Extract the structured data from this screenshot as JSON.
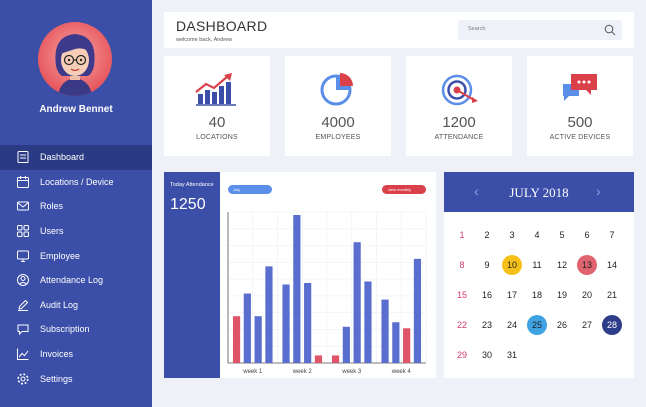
{
  "user": {
    "name": "Andrew Bennet"
  },
  "nav": [
    {
      "label": "Dashboard",
      "icon": "dashboard-icon",
      "active": true
    },
    {
      "label": "Locations / Device",
      "icon": "calendar-icon"
    },
    {
      "label": "Roles",
      "icon": "mail-icon"
    },
    {
      "label": "Users",
      "icon": "grid-icon"
    },
    {
      "label": "Employee",
      "icon": "monitor-icon"
    },
    {
      "label": "Attendance Log",
      "icon": "user-icon"
    },
    {
      "label": "Audit Log",
      "icon": "edit-icon"
    },
    {
      "label": "Subscription",
      "icon": "chat-icon"
    },
    {
      "label": "Invoices",
      "icon": "trend-icon"
    },
    {
      "label": "Settings",
      "icon": "gear-icon"
    }
  ],
  "header": {
    "title": "DASHBOARD",
    "subtitle": "welcome back, Andrew",
    "search_placeholder": "Search"
  },
  "stats": [
    {
      "value": "40",
      "label": "LOCATIONS",
      "icon": "bar-chart-icon"
    },
    {
      "value": "4000",
      "label": "EMPLOYEES",
      "icon": "pie-chart-icon"
    },
    {
      "value": "1200",
      "label": "ATTENDANCE",
      "icon": "target-icon"
    },
    {
      "value": "500",
      "label": "ACTIVE DEVICES",
      "icon": "chat-bubbles-icon"
    }
  ],
  "attendance": {
    "title": "Today Attendance",
    "value": "1250",
    "month_pill": "July",
    "view_pill": "view monthly"
  },
  "chart_data": {
    "type": "bar",
    "categories": [
      "week 1",
      "week 2",
      "week 3",
      "week 4"
    ],
    "ylim": [
      0,
      100
    ],
    "bars": [
      [
        {
          "v": 31,
          "c": "red"
        },
        {
          "v": 46,
          "c": "blue"
        },
        {
          "v": 31,
          "c": "blue"
        },
        {
          "v": 64,
          "c": "blue"
        }
      ],
      [
        {
          "v": 52,
          "c": "blue"
        },
        {
          "v": 98,
          "c": "blue"
        },
        {
          "v": 53,
          "c": "blue"
        },
        {
          "v": 5,
          "c": "red"
        }
      ],
      [
        {
          "v": 5,
          "c": "red"
        },
        {
          "v": 24,
          "c": "blue"
        },
        {
          "v": 80,
          "c": "blue"
        },
        {
          "v": 54,
          "c": "blue"
        }
      ],
      [
        {
          "v": 42,
          "c": "blue"
        },
        {
          "v": 27,
          "c": "blue"
        },
        {
          "v": 23,
          "c": "red"
        },
        {
          "v": 69,
          "c": "blue"
        }
      ]
    ],
    "colors": {
      "blue": "#5a6ed0",
      "red": "#e0546a"
    }
  },
  "calendar": {
    "month": "JULY 2018",
    "weeks": [
      [
        "1",
        "2",
        "3",
        "4",
        "5",
        "6",
        "7"
      ],
      [
        "8",
        "9",
        "10",
        "11",
        "12",
        "13",
        "14"
      ],
      [
        "15",
        "16",
        "17",
        "18",
        "19",
        "20",
        "21"
      ],
      [
        "22",
        "23",
        "24",
        "25",
        "26",
        "27",
        "28"
      ],
      [
        "29",
        "30",
        "31"
      ]
    ],
    "highlights": {
      "10": "yellow",
      "13": "red",
      "25": "blue",
      "28": "navy"
    }
  }
}
